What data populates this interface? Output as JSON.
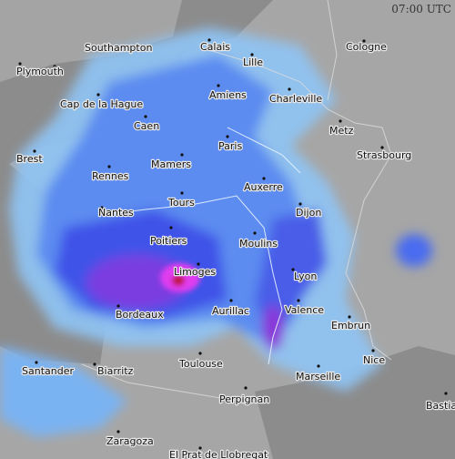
{
  "timestamp": "07:00 UTC",
  "cities": [
    "Southampton",
    "Plymouth",
    "Calais",
    "Cologne",
    "Lille",
    "Amiens",
    "Charleville",
    "Cap de la Hague",
    "Caen",
    "Metz",
    "Paris",
    "Brest",
    "Strasbourg",
    "Mamers",
    "Rennes",
    "Auxerre",
    "Tours",
    "Nantes",
    "Dijon",
    "Poitiers",
    "Moulins",
    "Limoges",
    "Lyon",
    "Aurillac",
    "Bordeaux",
    "Valence",
    "Embrun",
    "Nice",
    "Toulouse",
    "Santander",
    "Biarritz",
    "Marseille",
    "Perpignan",
    "Bastia",
    "Zaragoza",
    "El Prat de Llobregat"
  ]
}
